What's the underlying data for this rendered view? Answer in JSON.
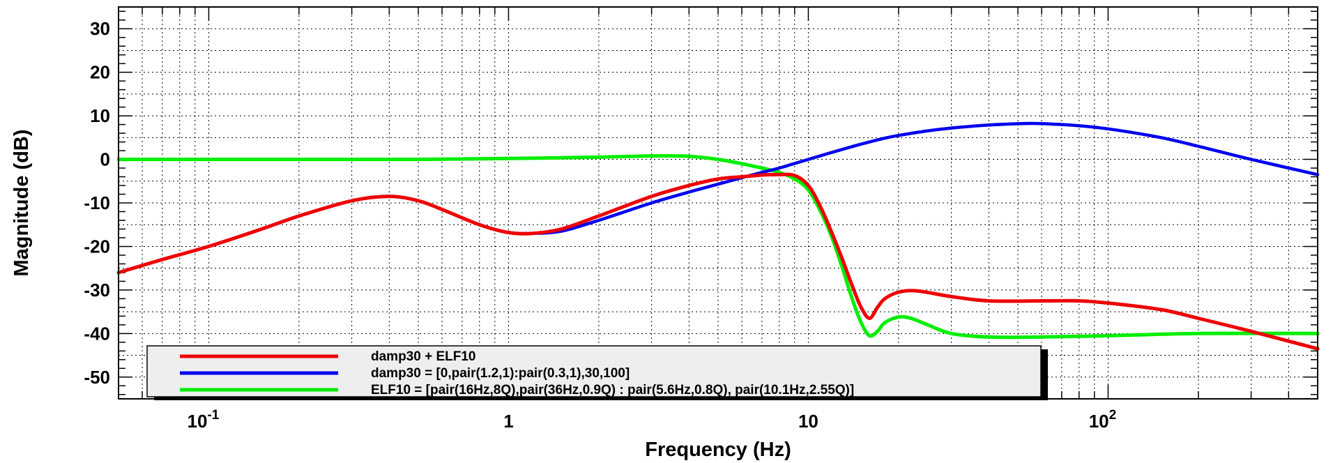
{
  "chart_data": {
    "type": "line",
    "title": "",
    "xlabel": "Frequency (Hz)",
    "ylabel": "Magnitude (dB)",
    "xscale": "log",
    "xlim": [
      0.05,
      500
    ],
    "ylim": [
      -55,
      35
    ],
    "grid": true,
    "legend_position": "bottom-left",
    "y_ticks": [
      "30",
      "20",
      "10",
      "0",
      "-10",
      "-20",
      "-30",
      "-40",
      "-50"
    ],
    "x_ticks": [
      {
        "base": "10",
        "exp": "-1"
      },
      {
        "base": "1",
        "exp": ""
      },
      {
        "base": "10",
        "exp": ""
      },
      {
        "base": "10",
        "exp": "2"
      }
    ],
    "series": [
      {
        "name": "damp30 + ELF10",
        "color": "#ee0000",
        "x": [
          0.05,
          0.07,
          0.1,
          0.15,
          0.2,
          0.3,
          0.4,
          0.5,
          0.6,
          0.8,
          1.0,
          1.2,
          1.5,
          2.0,
          3.0,
          4.0,
          5.0,
          6.0,
          7.0,
          8.0,
          9.0,
          10.0,
          11.0,
          12.0,
          13.0,
          14.0,
          15.0,
          16.0,
          17.0,
          18.0,
          20.0,
          23.0,
          30.0,
          40.0,
          60.0,
          80.0,
          100.0,
          150.0,
          200.0,
          300.0,
          500.0
        ],
        "y": [
          -26,
          -23,
          -20,
          -16,
          -13,
          -9.5,
          -8.5,
          -9.5,
          -11.5,
          -15,
          -16.8,
          -17,
          -16,
          -13,
          -8.5,
          -6,
          -4.5,
          -4,
          -3.6,
          -3.5,
          -3.7,
          -6,
          -11,
          -17,
          -23,
          -29,
          -34,
          -36.5,
          -34,
          -32,
          -30.5,
          -30.2,
          -31.5,
          -32.5,
          -32.5,
          -32.5,
          -33,
          -34.5,
          -36.5,
          -39.5,
          -43.5
        ]
      },
      {
        "name": "damp30 = [0,pair(1.2,1):pair(0.3,1),30,100]",
        "color": "#0000ee",
        "x": [
          0.05,
          0.07,
          0.1,
          0.15,
          0.2,
          0.3,
          0.4,
          0.5,
          0.6,
          0.8,
          1.0,
          1.2,
          1.5,
          2.0,
          3.0,
          4.0,
          5.0,
          6.0,
          7.0,
          8.0,
          10.0,
          15.0,
          20.0,
          30.0,
          50.0,
          70.0,
          100.0,
          150.0,
          200.0,
          300.0,
          500.0
        ],
        "y": [
          -26,
          -23,
          -20,
          -16,
          -13,
          -9.5,
          -8.5,
          -9.5,
          -11.5,
          -15,
          -16.8,
          -17,
          -16.5,
          -14,
          -10,
          -7.5,
          -5.7,
          -4.2,
          -3,
          -2,
          0,
          3.5,
          5.5,
          7.2,
          8.2,
          8,
          7,
          5,
          3,
          0,
          -3.5
        ]
      },
      {
        "name": "ELF10 = [pair(16Hz,8Q),pair(36Hz,0.9Q) : pair(5.6Hz,0.8Q), pair(10.1Hz,2.55Q)]",
        "color": "#00ee00",
        "x": [
          0.05,
          0.1,
          0.3,
          0.5,
          1.0,
          2.0,
          3.0,
          4.0,
          5.0,
          6.0,
          7.0,
          8.0,
          9.0,
          10.0,
          11.0,
          12.0,
          13.0,
          14.0,
          15.0,
          16.0,
          17.0,
          18.0,
          20.0,
          22.0,
          25.0,
          30.0,
          40.0,
          60.0,
          100.0,
          200.0,
          500.0
        ],
        "y": [
          0,
          0,
          0,
          0,
          0.2,
          0.5,
          0.8,
          0.7,
          0,
          -1,
          -2,
          -3,
          -4.5,
          -7,
          -12,
          -18,
          -25,
          -32,
          -37.5,
          -40.5,
          -39.5,
          -37.5,
          -36.2,
          -36.5,
          -38,
          -40,
          -40.8,
          -40.8,
          -40.5,
          -40,
          -40
        ]
      }
    ]
  }
}
